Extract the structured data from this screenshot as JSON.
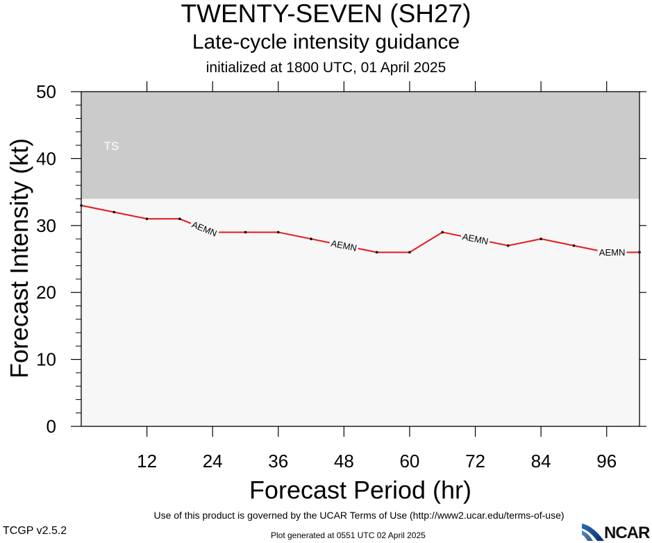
{
  "title": "TWENTY-SEVEN (SH27)",
  "subtitle": "Late-cycle intensity guidance",
  "initialized": "initialized at 1800 UTC, 01 April 2025",
  "footer": {
    "terms": "Use of this product is governed by the UCAR Terms of Use (http://www2.ucar.edu/terms-of-use)",
    "version": "TCGP v2.5.2",
    "generated": "Plot generated at 0551 UTC   02 April 2025",
    "logo": "NCAR"
  },
  "colors": {
    "ts_band": "#cbcbcb",
    "plot_background": "#f7f7f7",
    "series_line": "#e8161b",
    "points": "#000000"
  },
  "chart_data": {
    "type": "line",
    "xlabel": "Forecast Period (hr)",
    "ylabel": "Forecast Intensity (kt)",
    "xlim": [
      0,
      102
    ],
    "ylim": [
      0,
      50
    ],
    "xticks": [
      12,
      24,
      36,
      48,
      60,
      72,
      84,
      96
    ],
    "yticks": [
      0,
      10,
      20,
      30,
      40,
      50
    ],
    "grid": false,
    "bands": [
      {
        "label": "TS",
        "from": 34,
        "to": 50
      }
    ],
    "series": [
      {
        "name": "AEMN",
        "x": [
          0,
          6,
          12,
          18,
          24,
          30,
          36,
          42,
          48,
          54,
          60,
          66,
          72,
          78,
          84,
          90,
          96,
          102
        ],
        "y": [
          33,
          32,
          31,
          31,
          29,
          29,
          29,
          28,
          27,
          26,
          26,
          29,
          28,
          27,
          28,
          27,
          26,
          26
        ],
        "labels_at": [
          22.5,
          48,
          72,
          97
        ]
      }
    ]
  }
}
